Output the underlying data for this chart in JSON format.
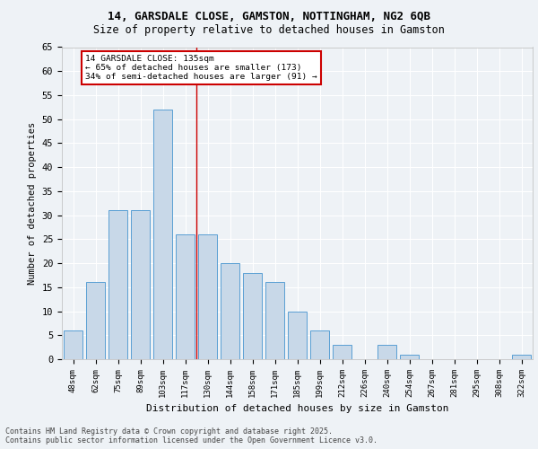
{
  "title1": "14, GARSDALE CLOSE, GAMSTON, NOTTINGHAM, NG2 6QB",
  "title2": "Size of property relative to detached houses in Gamston",
  "xlabel": "Distribution of detached houses by size in Gamston",
  "ylabel": "Number of detached properties",
  "categories": [
    "48sqm",
    "62sqm",
    "75sqm",
    "89sqm",
    "103sqm",
    "117sqm",
    "130sqm",
    "144sqm",
    "158sqm",
    "171sqm",
    "185sqm",
    "199sqm",
    "212sqm",
    "226sqm",
    "240sqm",
    "254sqm",
    "267sqm",
    "281sqm",
    "295sqm",
    "308sqm",
    "322sqm"
  ],
  "values": [
    6,
    16,
    31,
    31,
    52,
    26,
    26,
    20,
    18,
    16,
    10,
    6,
    3,
    0,
    3,
    1,
    0,
    0,
    0,
    0,
    1
  ],
  "bar_color": "#c8d8e8",
  "bar_edge_color": "#5a9fd4",
  "vline_x": 5.5,
  "vline_color": "#cc0000",
  "annotation_text": "14 GARSDALE CLOSE: 135sqm\n← 65% of detached houses are smaller (173)\n34% of semi-detached houses are larger (91) →",
  "annotation_box_color": "#cc0000",
  "ylim": [
    0,
    65
  ],
  "yticks": [
    0,
    5,
    10,
    15,
    20,
    25,
    30,
    35,
    40,
    45,
    50,
    55,
    60,
    65
  ],
  "footnote": "Contains HM Land Registry data © Crown copyright and database right 2025.\nContains public sector information licensed under the Open Government Licence v3.0.",
  "background_color": "#eef2f6",
  "plot_bg_color": "#eef2f6"
}
